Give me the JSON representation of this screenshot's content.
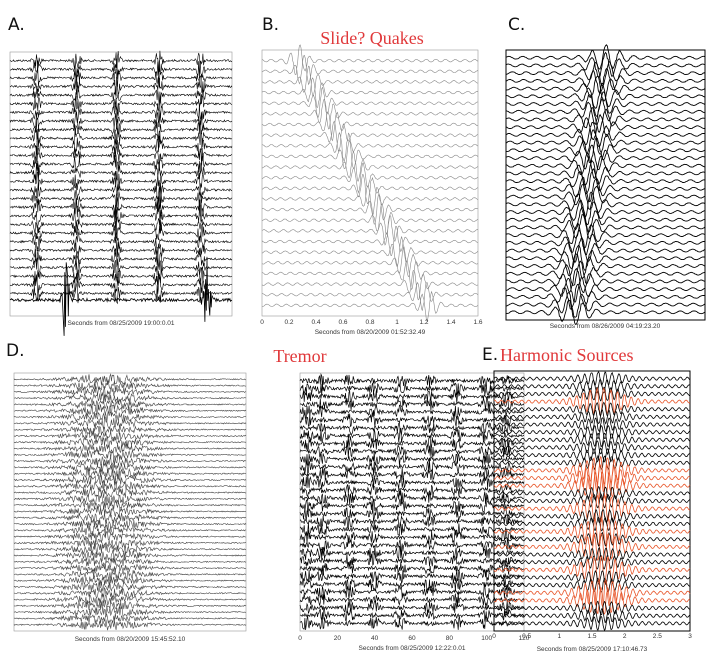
{
  "panels": [
    {
      "label": "A.",
      "xlabel": "Seconds from 08/25/2009 19:00:0.01"
    },
    {
      "label": "B.",
      "title": "Slide? Quakes",
      "xlabel": "Seconds from 08/20/2009 01:52:32.49",
      "xticks": [
        0,
        0.2,
        0.4,
        0.6,
        0.8,
        1,
        1.2,
        1.4,
        1.6
      ]
    },
    {
      "label": "C.",
      "xlabel": "Seconds from 08/26/2009 04:19:23.20"
    },
    {
      "label": "D.",
      "title": "Tremor",
      "plots": [
        {
          "xlabel": "Seconds from 08/20/2009 15:45:52.10"
        },
        {
          "xlabel": "Seconds from 08/25/2009 12:22:0.01",
          "xticks": [
            0,
            20,
            40,
            60,
            80,
            100,
            120
          ]
        }
      ]
    },
    {
      "label": "E.",
      "title": "Harmonic Sources",
      "xlabel": "Seconds from 08/25/2009 17:10:46.73",
      "xticks": [
        0,
        0.5,
        1,
        1.5,
        2,
        2.5,
        3
      ]
    }
  ]
}
